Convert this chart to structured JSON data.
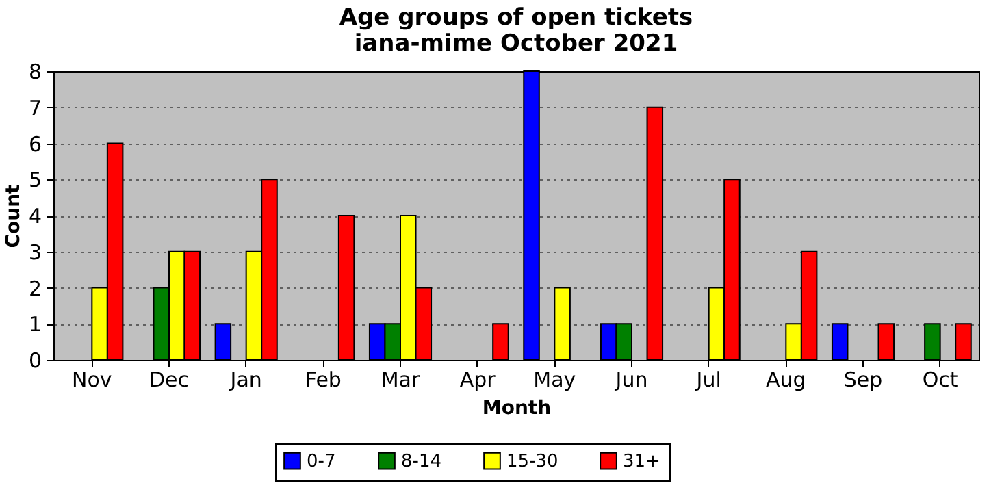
{
  "chart_data": {
    "type": "bar",
    "title": "Age groups of open tickets",
    "subtitle": "iana-mime October 2021",
    "xlabel": "Month",
    "ylabel": "Count",
    "categories": [
      "Nov",
      "Dec",
      "Jan",
      "Feb",
      "Mar",
      "Apr",
      "May",
      "Jun",
      "Jul",
      "Aug",
      "Sep",
      "Oct"
    ],
    "series": [
      {
        "name": "0-7",
        "color": "#0000ff",
        "values": [
          0,
          0,
          1,
          0,
          1,
          0,
          8,
          1,
          0,
          0,
          1,
          0
        ]
      },
      {
        "name": "8-14",
        "color": "#008000",
        "values": [
          0,
          2,
          0,
          0,
          1,
          0,
          0,
          1,
          0,
          0,
          0,
          1
        ]
      },
      {
        "name": "15-30",
        "color": "#ffff00",
        "values": [
          2,
          3,
          3,
          0,
          4,
          0,
          2,
          0,
          2,
          1,
          0,
          0
        ]
      },
      {
        "name": "31+",
        "color": "#ff0000",
        "values": [
          6,
          3,
          5,
          4,
          2,
          1,
          0,
          7,
          5,
          3,
          1,
          1
        ]
      }
    ],
    "ylim": [
      0,
      8
    ],
    "yticks": [
      0,
      1,
      2,
      3,
      4,
      5,
      6,
      7,
      8
    ],
    "grid": "y",
    "legend": "bottom"
  }
}
